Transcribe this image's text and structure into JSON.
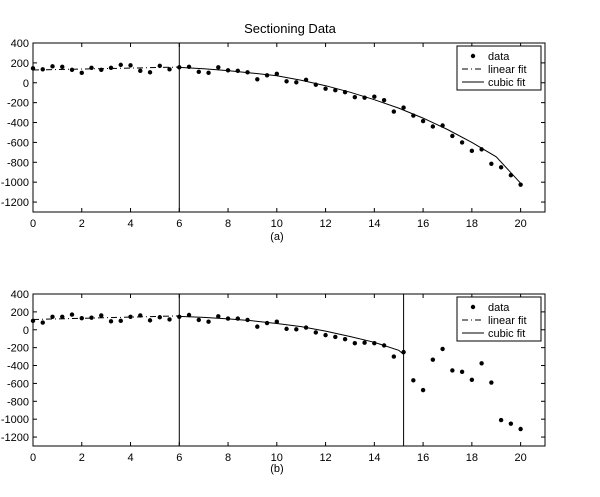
{
  "title": "Sectioning Data",
  "colors": {
    "line": "#000000",
    "background": "#ffffff"
  },
  "chart_data": [
    {
      "type": "scatter",
      "label": "(a)",
      "title": "Sectioning Data",
      "xlim": [
        0,
        21
      ],
      "ylim": [
        -1300,
        400
      ],
      "xticks": [
        0,
        2,
        4,
        6,
        8,
        10,
        12,
        14,
        16,
        18,
        20
      ],
      "yticks": [
        400,
        200,
        0,
        -200,
        -400,
        -600,
        -800,
        -1000,
        -1200
      ],
      "grid": false,
      "legend": {
        "position": "top-right",
        "entries": [
          "data",
          "linear fit",
          "cubic fit"
        ]
      },
      "vlines": [
        6
      ],
      "series": [
        {
          "name": "data",
          "type": "scatter",
          "points": [
            [
              0,
              145
            ],
            [
              0.4,
              135
            ],
            [
              0.8,
              165
            ],
            [
              1.2,
              160
            ],
            [
              1.6,
              130
            ],
            [
              2.0,
              100
            ],
            [
              2.4,
              150
            ],
            [
              2.8,
              130
            ],
            [
              3.2,
              150
            ],
            [
              3.6,
              180
            ],
            [
              4.0,
              175
            ],
            [
              4.4,
              120
            ],
            [
              4.8,
              105
            ],
            [
              5.2,
              170
            ],
            [
              5.6,
              135
            ],
            [
              6.0,
              155
            ],
            [
              6.4,
              160
            ],
            [
              6.8,
              110
            ],
            [
              7.2,
              100
            ],
            [
              7.6,
              155
            ],
            [
              8.0,
              125
            ],
            [
              8.4,
              120
            ],
            [
              8.8,
              105
            ],
            [
              9.2,
              35
            ],
            [
              9.6,
              75
            ],
            [
              10.0,
              90
            ],
            [
              10.4,
              15
            ],
            [
              10.8,
              5
            ],
            [
              11.2,
              30
            ],
            [
              11.6,
              -20
            ],
            [
              12.0,
              -60
            ],
            [
              12.4,
              -75
            ],
            [
              12.8,
              -95
            ],
            [
              13.2,
              -145
            ],
            [
              13.6,
              -150
            ],
            [
              14.0,
              -140
            ],
            [
              14.4,
              -175
            ],
            [
              14.8,
              -290
            ],
            [
              15.2,
              -250
            ],
            [
              15.6,
              -330
            ],
            [
              16.0,
              -385
            ],
            [
              16.4,
              -440
            ],
            [
              16.8,
              -430
            ],
            [
              17.2,
              -535
            ],
            [
              17.6,
              -600
            ],
            [
              18.0,
              -685
            ],
            [
              18.4,
              -670
            ],
            [
              18.8,
              -815
            ],
            [
              19.2,
              -850
            ],
            [
              19.6,
              -930
            ],
            [
              20.0,
              -1025
            ]
          ]
        },
        {
          "name": "linear fit",
          "type": "line",
          "style": "dashdot",
          "points": [
            [
              0,
              128
            ],
            [
              6,
              158
            ]
          ]
        },
        {
          "name": "cubic fit",
          "type": "line",
          "style": "solid",
          "points": [
            [
              6.0,
              155
            ],
            [
              7.0,
              140
            ],
            [
              8.0,
              122
            ],
            [
              9.0,
              97
            ],
            [
              10.0,
              70
            ],
            [
              11.0,
              25
            ],
            [
              12.0,
              -30
            ],
            [
              13.0,
              -95
            ],
            [
              14.0,
              -170
            ],
            [
              15.0,
              -255
            ],
            [
              16.0,
              -355
            ],
            [
              17.0,
              -470
            ],
            [
              18.0,
              -600
            ],
            [
              19.0,
              -745
            ],
            [
              20.0,
              -1010
            ]
          ]
        }
      ]
    },
    {
      "type": "scatter",
      "label": "(b)",
      "title": "",
      "xlim": [
        0,
        21
      ],
      "ylim": [
        -1300,
        400
      ],
      "xticks": [
        0,
        2,
        4,
        6,
        8,
        10,
        12,
        14,
        16,
        18,
        20
      ],
      "yticks": [
        400,
        200,
        0,
        -200,
        -400,
        -600,
        -800,
        -1000,
        -1200
      ],
      "grid": false,
      "legend": {
        "position": "top-right",
        "entries": [
          "data",
          "linear fit",
          "cubic fit"
        ]
      },
      "vlines": [
        6,
        15.2
      ],
      "series": [
        {
          "name": "data",
          "type": "scatter",
          "points": [
            [
              0,
              100
            ],
            [
              0.4,
              80
            ],
            [
              0.8,
              145
            ],
            [
              1.2,
              145
            ],
            [
              1.6,
              170
            ],
            [
              2.0,
              130
            ],
            [
              2.4,
              135
            ],
            [
              2.8,
              160
            ],
            [
              3.2,
              95
            ],
            [
              3.6,
              100
            ],
            [
              4.0,
              145
            ],
            [
              4.4,
              160
            ],
            [
              4.8,
              105
            ],
            [
              5.2,
              140
            ],
            [
              5.6,
              115
            ],
            [
              6.0,
              145
            ],
            [
              6.4,
              165
            ],
            [
              6.8,
              110
            ],
            [
              7.2,
              90
            ],
            [
              7.6,
              150
            ],
            [
              8.0,
              125
            ],
            [
              8.4,
              125
            ],
            [
              8.8,
              110
            ],
            [
              9.2,
              35
            ],
            [
              9.6,
              75
            ],
            [
              10.0,
              90
            ],
            [
              10.4,
              10
            ],
            [
              10.8,
              5
            ],
            [
              11.2,
              25
            ],
            [
              11.6,
              -30
            ],
            [
              12.0,
              -60
            ],
            [
              12.4,
              -80
            ],
            [
              12.8,
              -105
            ],
            [
              13.2,
              -150
            ],
            [
              13.6,
              -145
            ],
            [
              14.0,
              -150
            ],
            [
              14.4,
              -175
            ],
            [
              14.8,
              -300
            ],
            [
              15.2,
              -250
            ],
            [
              15.6,
              -565
            ],
            [
              16.0,
              -675
            ],
            [
              16.4,
              -335
            ],
            [
              16.8,
              -215
            ],
            [
              17.2,
              -455
            ],
            [
              17.6,
              -470
            ],
            [
              18.0,
              -560
            ],
            [
              18.4,
              -375
            ],
            [
              18.8,
              -590
            ],
            [
              19.2,
              -1010
            ],
            [
              19.6,
              -1050
            ],
            [
              20.0,
              -1110
            ]
          ]
        },
        {
          "name": "linear fit",
          "type": "line",
          "style": "dashdot",
          "points": [
            [
              0,
              115
            ],
            [
              6,
              155
            ]
          ]
        },
        {
          "name": "cubic fit",
          "type": "line",
          "style": "solid",
          "points": [
            [
              6.0,
              150
            ],
            [
              7.0,
              138
            ],
            [
              8.0,
              122
            ],
            [
              9.0,
              100
            ],
            [
              10.0,
              70
            ],
            [
              11.0,
              35
            ],
            [
              12.0,
              -15
            ],
            [
              13.0,
              -75
            ],
            [
              14.0,
              -140
            ],
            [
              15.0,
              -230
            ],
            [
              15.2,
              -275
            ]
          ]
        }
      ]
    }
  ]
}
